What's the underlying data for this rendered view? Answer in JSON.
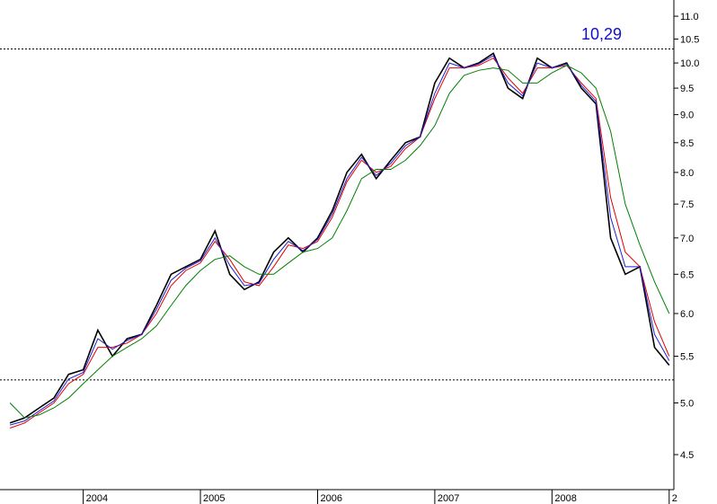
{
  "chart_data": {
    "type": "line",
    "log_y": true,
    "x": [
      2003.375,
      2003.5,
      2003.625,
      2003.75,
      2003.875,
      2004.0,
      2004.125,
      2004.25,
      2004.375,
      2004.5,
      2004.625,
      2004.75,
      2004.875,
      2005.0,
      2005.125,
      2005.25,
      2005.375,
      2005.5,
      2005.625,
      2005.75,
      2005.875,
      2006.0,
      2006.125,
      2006.25,
      2006.375,
      2006.5,
      2006.625,
      2006.75,
      2006.875,
      2007.0,
      2007.125,
      2007.25,
      2007.375,
      2007.5,
      2007.625,
      2007.75,
      2007.875,
      2008.0,
      2008.125,
      2008.25,
      2008.375,
      2008.5,
      2008.625,
      2008.75,
      2008.875,
      2009.0
    ],
    "series": [
      {
        "color": "#000000",
        "values": [
          4.8,
          4.85,
          4.95,
          5.05,
          5.3,
          5.35,
          5.8,
          5.5,
          5.7,
          5.75,
          6.1,
          6.5,
          6.6,
          6.7,
          7.1,
          6.5,
          6.3,
          6.4,
          6.8,
          7.0,
          6.8,
          7.0,
          7.4,
          8.0,
          8.3,
          7.9,
          8.2,
          8.5,
          8.6,
          9.6,
          10.1,
          9.9,
          10.0,
          10.2,
          9.5,
          9.3,
          10.1,
          9.9,
          10.0,
          9.5,
          9.2,
          7.0,
          6.5,
          6.6,
          5.6,
          5.4
        ]
      },
      {
        "color": "#e00000",
        "values": [
          4.75,
          4.8,
          4.9,
          5.0,
          5.2,
          5.3,
          5.6,
          5.6,
          5.65,
          5.75,
          6.0,
          6.35,
          6.55,
          6.65,
          6.95,
          6.7,
          6.4,
          6.35,
          6.6,
          6.9,
          6.85,
          6.95,
          7.3,
          7.85,
          8.2,
          8.0,
          8.1,
          8.4,
          8.6,
          9.3,
          9.9,
          9.9,
          9.95,
          10.1,
          9.7,
          9.4,
          9.9,
          9.9,
          9.95,
          9.6,
          9.3,
          7.6,
          6.8,
          6.6,
          5.9,
          5.5
        ]
      },
      {
        "color": "#2020d0",
        "values": [
          4.78,
          4.82,
          4.92,
          5.02,
          5.25,
          5.32,
          5.7,
          5.58,
          5.68,
          5.75,
          6.05,
          6.42,
          6.58,
          6.68,
          7.0,
          6.62,
          6.35,
          6.38,
          6.7,
          6.95,
          6.82,
          6.98,
          7.35,
          7.9,
          8.25,
          7.95,
          8.15,
          8.45,
          8.6,
          9.4,
          10.0,
          9.9,
          9.98,
          10.15,
          9.6,
          9.35,
          10.0,
          9.9,
          9.98,
          9.55,
          9.25,
          7.3,
          6.6,
          6.6,
          5.75,
          5.45
        ]
      },
      {
        "color": "#008000",
        "values": [
          5.0,
          4.85,
          4.88,
          4.95,
          5.05,
          5.2,
          5.35,
          5.5,
          5.6,
          5.7,
          5.85,
          6.1,
          6.35,
          6.55,
          6.7,
          6.75,
          6.6,
          6.5,
          6.5,
          6.65,
          6.8,
          6.85,
          7.0,
          7.4,
          7.9,
          8.05,
          8.05,
          8.2,
          8.45,
          8.8,
          9.4,
          9.75,
          9.85,
          9.9,
          9.85,
          9.6,
          9.6,
          9.8,
          9.95,
          9.8,
          9.5,
          8.7,
          7.5,
          6.9,
          6.4,
          6.0
        ]
      }
    ],
    "xlim": [
      2003.29,
      2009.04
    ],
    "xticks": [
      2004,
      2005,
      2006,
      2007,
      2008,
      {
        "value": 2009,
        "label": "2"
      }
    ],
    "ylim": [
      4.19,
      11.37
    ],
    "yticks": [
      4.5,
      {
        "value": 5,
        "label": "5.0"
      },
      5.5,
      {
        "value": 6,
        "label": "6.0"
      },
      6.5,
      {
        "value": 7,
        "label": "7.0"
      },
      7.5,
      {
        "value": 8,
        "label": "8.0"
      },
      8.5,
      {
        "value": 9,
        "label": "9.0"
      },
      9.5,
      {
        "value": 10,
        "label": "10.0"
      },
      10.5,
      {
        "value": 11,
        "label": "11.0"
      }
    ],
    "reference_lines": [
      10.29,
      5.24
    ],
    "annotation": "10,29",
    "annotation_color": "#1010d0"
  }
}
